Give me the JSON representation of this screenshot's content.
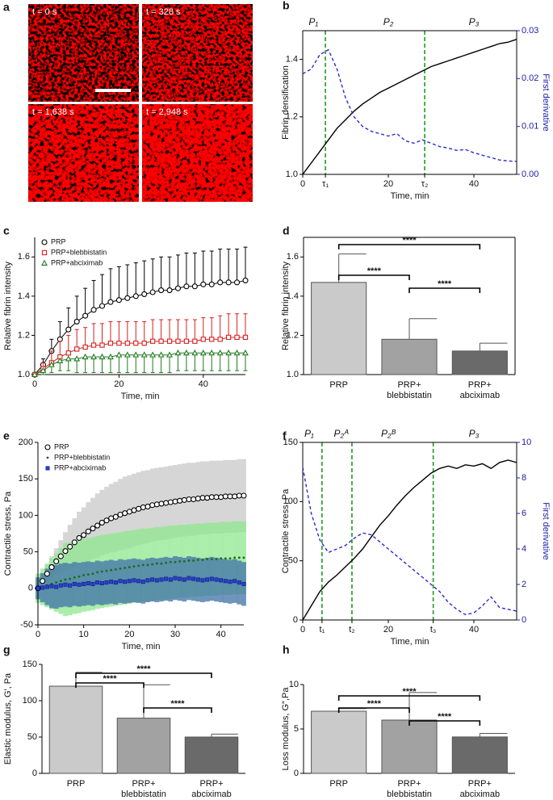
{
  "images": {
    "panel": "a",
    "frames": [
      "t = 0 s",
      "t = 328 s",
      "t = 1,638 s",
      "t = 2,948 s"
    ]
  },
  "chart_data": [
    {
      "panel": "b",
      "type": "line",
      "frame": "box",
      "xlabel": "Time, min",
      "ylabel": "Fibrin densification",
      "y2label": "First derivative",
      "y2color": "#2020a8",
      "marker_lines": true,
      "marker_line_color": "#1f9a1f",
      "annotations": [
        {
          "text": "P₁",
          "x": 2.5
        },
        {
          "text": "P₂",
          "x": 20
        },
        {
          "text": "P₃",
          "x": 40
        }
      ],
      "xlim": [
        0,
        50
      ],
      "xticks": [
        0,
        {
          "value": 5.3,
          "label": "τ₁"
        },
        20,
        {
          "value": 28.5,
          "label": "τ₂"
        },
        40
      ],
      "ylim": [
        1,
        1.5
      ],
      "yticks": [
        {
          "value": 1,
          "label": "1.0"
        },
        1.2,
        1.4
      ],
      "y2lim": [
        0,
        0.03
      ],
      "y2ticks": [
        {
          "value": 0,
          "label": "0.00"
        },
        {
          "value": 0.01,
          "label": "0.01"
        },
        {
          "value": 0.02,
          "label": "0.02"
        },
        {
          "value": 0.03,
          "label": "0.03"
        }
      ],
      "x": [
        0,
        2,
        4,
        6,
        8,
        10,
        12,
        14,
        16,
        18,
        20,
        22,
        24,
        26,
        28,
        30,
        32,
        34,
        36,
        38,
        40,
        42,
        44,
        46,
        48,
        50
      ],
      "series": [
        {
          "color": "#000000",
          "values": [
            1.0,
            1.04,
            1.08,
            1.12,
            1.16,
            1.19,
            1.22,
            1.245,
            1.265,
            1.285,
            1.3,
            1.315,
            1.33,
            1.345,
            1.36,
            1.375,
            1.385,
            1.395,
            1.405,
            1.415,
            1.425,
            1.435,
            1.445,
            1.455,
            1.46,
            1.47
          ]
        },
        {
          "color": "#2b2bd0",
          "dash": true,
          "axis": "y2",
          "values": [
            0.021,
            0.022,
            0.025,
            0.026,
            0.022,
            0.016,
            0.012,
            0.01,
            0.009,
            0.0085,
            0.008,
            0.0085,
            0.007,
            0.0065,
            0.0072,
            0.0065,
            0.0058,
            0.0055,
            0.005,
            0.0052,
            0.0045,
            0.004,
            0.0035,
            0.003,
            0.0028,
            0.0027
          ]
        }
      ]
    },
    {
      "panel": "c",
      "type": "line",
      "frame": "open",
      "xlabel": "Time, min",
      "ylabel": "Relative fibrin intensity",
      "legend": "top-left",
      "xlim": [
        0,
        50
      ],
      "xticks": [
        0,
        20,
        40
      ],
      "ylim": [
        1,
        1.7
      ],
      "yticks": [
        {
          "value": 1,
          "label": "1.0"
        },
        1.2,
        1.4,
        1.6
      ],
      "x": [
        0,
        2,
        4,
        6,
        8,
        10,
        12,
        14,
        16,
        18,
        20,
        22,
        24,
        26,
        28,
        30,
        32,
        34,
        36,
        38,
        40,
        42,
        44,
        46,
        48,
        50
      ],
      "series": [
        {
          "name": "PRP",
          "color": "#000000",
          "marker": "circle",
          "error_direction": "up",
          "values": [
            1.0,
            1.05,
            1.12,
            1.18,
            1.23,
            1.27,
            1.3,
            1.33,
            1.35,
            1.37,
            1.38,
            1.39,
            1.4,
            1.41,
            1.42,
            1.43,
            1.43,
            1.44,
            1.45,
            1.45,
            1.46,
            1.46,
            1.47,
            1.47,
            1.47,
            1.48
          ],
          "errors": [
            0,
            0.03,
            0.06,
            0.09,
            0.11,
            0.13,
            0.14,
            0.15,
            0.16,
            0.17,
            0.17,
            0.17,
            0.17,
            0.17,
            0.17,
            0.17,
            0.17,
            0.17,
            0.17,
            0.17,
            0.17,
            0.17,
            0.17,
            0.17,
            0.17,
            0.17
          ]
        },
        {
          "name": "PRP+blebbistatin",
          "color": "#d62020",
          "marker": "square",
          "error_direction": "up",
          "values": [
            1.0,
            1.03,
            1.06,
            1.09,
            1.11,
            1.13,
            1.14,
            1.15,
            1.15,
            1.16,
            1.16,
            1.16,
            1.16,
            1.16,
            1.17,
            1.17,
            1.17,
            1.17,
            1.17,
            1.17,
            1.18,
            1.18,
            1.18,
            1.19,
            1.19,
            1.19
          ],
          "errors": [
            0,
            0.03,
            0.06,
            0.08,
            0.09,
            0.1,
            0.1,
            0.11,
            0.11,
            0.11,
            0.11,
            0.11,
            0.11,
            0.11,
            0.11,
            0.11,
            0.11,
            0.11,
            0.11,
            0.11,
            0.11,
            0.11,
            0.12,
            0.12,
            0.12,
            0.12
          ]
        },
        {
          "name": "PRP+abciximab",
          "color": "#1e7a1e",
          "marker": "triangle",
          "error_direction": "down",
          "values": [
            1.0,
            1.02,
            1.05,
            1.07,
            1.08,
            1.08,
            1.09,
            1.09,
            1.09,
            1.09,
            1.1,
            1.1,
            1.1,
            1.1,
            1.1,
            1.1,
            1.1,
            1.11,
            1.11,
            1.11,
            1.11,
            1.11,
            1.11,
            1.11,
            1.11,
            1.11
          ],
          "errors": [
            0,
            0.02,
            0.04,
            0.05,
            0.06,
            0.07,
            0.08,
            0.08,
            0.08,
            0.08,
            0.09,
            0.09,
            0.09,
            0.09,
            0.09,
            0.09,
            0.09,
            0.09,
            0.09,
            0.09,
            0.09,
            0.09,
            0.09,
            0.09,
            0.09,
            0.09
          ]
        }
      ]
    },
    {
      "panel": "d",
      "type": "bar",
      "frame": "box",
      "ylabel": "Relative fibrin intensity",
      "ylim": [
        1,
        1.7
      ],
      "yticks": [
        {
          "value": 1,
          "label": "1.0"
        },
        1.2,
        1.4,
        1.6
      ],
      "categories": [
        [
          "PRP"
        ],
        [
          "PRP+",
          "blebbistatin"
        ],
        [
          "PRP+",
          "abciximab"
        ]
      ],
      "values": [
        1.47,
        1.18,
        1.12
      ],
      "errors": [
        0.145,
        0.105,
        0.04
      ],
      "colors": [
        "#cacaca",
        "#a2a2a2",
        "#6a6a6a"
      ],
      "brackets": [
        {
          "from": 0,
          "to": 2,
          "label": "****"
        },
        {
          "from": 0,
          "to": 1,
          "label": "****"
        },
        {
          "from": 1,
          "to": 2,
          "label": "****"
        }
      ]
    },
    {
      "panel": "e",
      "type": "scatter",
      "frame": "open",
      "xlabel": "Time, min",
      "ylabel": "Contractile stress, Pa",
      "legend": "top-left",
      "xlim": [
        0,
        45
      ],
      "xticks": [
        0,
        10,
        20,
        30,
        40
      ],
      "ylim": [
        -50,
        200
      ],
      "yticks": [
        -50,
        0,
        50,
        100,
        150,
        200
      ],
      "x": [
        0,
        1,
        2,
        3,
        4,
        5,
        6,
        7,
        8,
        9,
        10,
        11,
        12,
        13,
        14,
        15,
        16,
        17,
        18,
        19,
        20,
        21,
        22,
        23,
        24,
        25,
        26,
        27,
        28,
        29,
        30,
        31,
        32,
        33,
        34,
        35,
        36,
        37,
        38,
        39,
        40,
        41,
        42,
        43,
        44,
        45
      ],
      "series": [
        {
          "name": "PRP",
          "color": "#000000",
          "marker": "circle",
          "error_color": "#c9c9c9",
          "values": [
            0,
            10,
            20,
            29,
            37,
            44,
            51,
            57,
            63,
            69,
            73,
            78,
            82,
            86,
            90,
            93,
            96,
            98,
            101,
            103,
            105,
            107,
            109,
            111,
            112,
            114,
            115,
            116,
            117,
            118,
            119,
            120,
            121,
            122,
            122,
            123,
            124,
            124,
            125,
            125,
            125,
            126,
            126,
            126,
            127,
            127
          ],
          "errors": [
            5,
            8,
            12,
            15,
            18,
            22,
            26,
            30,
            33,
            36,
            38,
            40,
            42,
            44,
            45,
            46,
            47,
            48,
            49,
            50,
            50,
            50,
            50,
            50,
            50,
            50,
            50,
            50,
            50,
            50,
            50,
            50,
            50,
            50,
            50,
            50,
            50,
            50,
            50,
            50,
            50,
            50,
            50,
            50,
            50,
            50
          ]
        },
        {
          "name": "PRP+blebbistatin",
          "color": "#1f6a1f",
          "marker": "dot",
          "error_color": "#8fe88f",
          "values": [
            0,
            2,
            4,
            6,
            8,
            10,
            12,
            13,
            15,
            16,
            18,
            19,
            20,
            22,
            23,
            24,
            25,
            26,
            27,
            28,
            29,
            30,
            31,
            32,
            32,
            33,
            34,
            34,
            35,
            36,
            36,
            37,
            37,
            38,
            38,
            39,
            39,
            40,
            40,
            40,
            41,
            41,
            41,
            42,
            42,
            42
          ],
          "errors": [
            20,
            25,
            30,
            35,
            40,
            45,
            50,
            50,
            50,
            50,
            50,
            50,
            50,
            50,
            50,
            50,
            50,
            50,
            50,
            50,
            50,
            50,
            50,
            50,
            50,
            50,
            50,
            50,
            50,
            50,
            50,
            50,
            50,
            50,
            50,
            50,
            50,
            50,
            50,
            50,
            50,
            50,
            50,
            50,
            50,
            50
          ]
        },
        {
          "name": "PRP+abciximab",
          "color": "#2a3fd0",
          "marker": "square-filled",
          "error_color": "#3f72a8",
          "values": [
            0,
            1,
            2,
            3,
            2,
            4,
            5,
            4,
            6,
            5,
            6,
            7,
            6,
            8,
            7,
            8,
            9,
            8,
            10,
            9,
            10,
            11,
            10,
            9,
            11,
            12,
            11,
            12,
            13,
            12,
            14,
            13,
            12,
            14,
            13,
            12,
            11,
            12,
            13,
            12,
            11,
            10,
            9,
            10,
            8,
            6
          ],
          "errors": [
            15,
            20,
            25,
            30,
            30,
            30,
            30,
            30,
            30,
            30,
            30,
            30,
            30,
            30,
            30,
            30,
            30,
            30,
            30,
            30,
            30,
            30,
            30,
            30,
            30,
            30,
            30,
            30,
            30,
            30,
            30,
            30,
            30,
            30,
            30,
            30,
            30,
            30,
            30,
            30,
            30,
            30,
            30,
            30,
            30,
            30
          ]
        }
      ]
    },
    {
      "panel": "f",
      "type": "line",
      "frame": "box",
      "xlabel": "Time, min",
      "ylabel": "Contractile stress, Pa",
      "y2label": "First derivative",
      "y2color": "#2020a8",
      "marker_lines": true,
      "marker_line_color": "#1f9a1f",
      "annotations": [
        {
          "text": "P₁",
          "x": 1.5
        },
        {
          "text": "P₂ᴬ",
          "x": 9
        },
        {
          "text": "P₂ᴮ",
          "x": 20
        },
        {
          "text": "P₃",
          "x": 40
        }
      ],
      "xlim": [
        0,
        50
      ],
      "xticks": [
        0,
        {
          "value": 4.5,
          "label": "t₁"
        },
        {
          "value": 11.5,
          "label": "t₂"
        },
        20,
        {
          "value": 30.5,
          "label": "t₃"
        },
        40
      ],
      "ylim": [
        0,
        150
      ],
      "yticks": [
        0,
        50,
        100,
        150
      ],
      "y2lim": [
        0,
        10
      ],
      "y2ticks": [
        0,
        2,
        4,
        6,
        8,
        10
      ],
      "x": [
        0,
        2,
        4,
        6,
        8,
        10,
        12,
        14,
        16,
        18,
        20,
        22,
        24,
        26,
        28,
        30,
        32,
        34,
        36,
        38,
        40,
        42,
        44,
        46,
        48,
        50
      ],
      "series": [
        {
          "color": "#000000",
          "values": [
            0,
            12,
            24,
            32,
            38,
            45,
            52,
            60,
            70,
            80,
            88,
            97,
            105,
            112,
            118,
            124,
            128,
            130,
            128,
            131,
            130,
            132,
            128,
            133,
            135,
            133
          ]
        },
        {
          "color": "#2b2bd0",
          "dash": true,
          "axis": "y2",
          "values": [
            8.6,
            6.0,
            4.5,
            3.8,
            4.0,
            4.2,
            4.6,
            4.9,
            4.8,
            4.4,
            4.0,
            3.6,
            3.2,
            2.8,
            2.4,
            2.0,
            1.6,
            1.0,
            0.6,
            0.3,
            0.4,
            0.8,
            1.3,
            0.7,
            0.6,
            0.5
          ]
        }
      ]
    },
    {
      "panel": "g",
      "type": "bar",
      "frame": "open",
      "ylabel": "Elastic modulus, G′, Pa",
      "ylim": [
        0,
        150
      ],
      "yticks": [
        0,
        50,
        100,
        150
      ],
      "categories": [
        [
          "PRP"
        ],
        [
          "PRP+",
          "blebbistatin"
        ],
        [
          "PRP+",
          "abciximab"
        ]
      ],
      "values": [
        120,
        76,
        50
      ],
      "errors": [
        19,
        46,
        4
      ],
      "colors": [
        "#cacaca",
        "#a2a2a2",
        "#6a6a6a"
      ],
      "brackets": [
        {
          "from": 0,
          "to": 2,
          "label": "****"
        },
        {
          "from": 0,
          "to": 1,
          "label": "****"
        },
        {
          "from": 1,
          "to": 2,
          "label": "****"
        }
      ]
    },
    {
      "panel": "h",
      "type": "bar",
      "frame": "open",
      "ylabel": "Loss modulus, G″,Pa",
      "ylim": [
        0,
        10
      ],
      "yticks": [
        0,
        5,
        10
      ],
      "categories": [
        [
          "PRP"
        ],
        [
          "PRP+",
          "blebbistatin"
        ],
        [
          "PRP+",
          "abciximab"
        ]
      ],
      "values": [
        7.0,
        6.0,
        4.1
      ],
      "errors": [
        0.3,
        3.1,
        0.4
      ],
      "colors": [
        "#cacaca",
        "#a2a2a2",
        "#6a6a6a"
      ],
      "brackets": [
        {
          "from": 0,
          "to": 2,
          "label": "****"
        },
        {
          "from": 0,
          "to": 1,
          "label": "****"
        },
        {
          "from": 1,
          "to": 2,
          "label": "****"
        }
      ]
    }
  ]
}
